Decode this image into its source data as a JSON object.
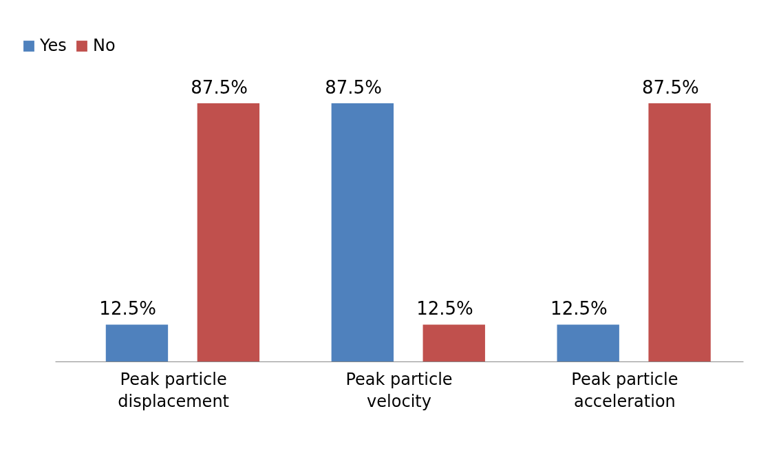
{
  "chart_data": {
    "type": "bar",
    "categories": [
      "Peak particle displacement",
      "Peak particle velocity",
      "Peak particle acceleration"
    ],
    "series": [
      {
        "name": "Yes",
        "color": "#4f81bd",
        "values": [
          12.5,
          87.5,
          12.5
        ],
        "value_labels": [
          "12.5%",
          "87.5%",
          "12.5%"
        ]
      },
      {
        "name": "No",
        "color": "#c0504d",
        "values": [
          87.5,
          12.5,
          87.5
        ],
        "value_labels": [
          "87.5%",
          "12.5%",
          "87.5%"
        ]
      }
    ],
    "legend": "top left",
    "grid": false
  }
}
